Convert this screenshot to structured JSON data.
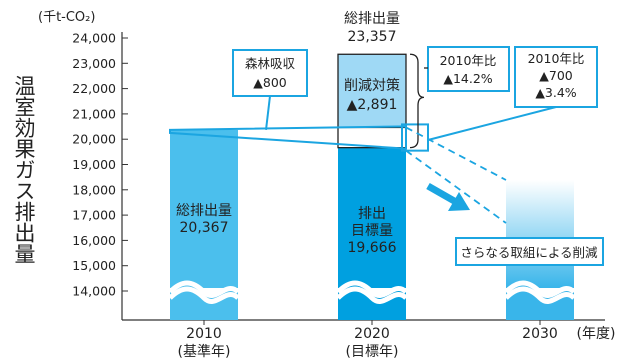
{
  "chart_data": {
    "type": "bar",
    "unit": "(千t-CO₂)",
    "ylabel": "温室効果ガス排出量",
    "xlabel": "(年度)",
    "ylim": [
      13500,
      24000
    ],
    "yticks": [
      "24,000",
      "23,000",
      "22,000",
      "21,000",
      "20,000",
      "19,000",
      "18,000",
      "17,000",
      "16,000",
      "15,000",
      "14,000"
    ],
    "ytick_values": [
      24000,
      23000,
      22000,
      21000,
      20000,
      19000,
      18000,
      17000,
      16000,
      15000,
      14000
    ],
    "categories": [
      {
        "year": "2010",
        "sub": "(基準年)"
      },
      {
        "year": "2020",
        "sub": "(目標年)"
      },
      {
        "year": "2030",
        "sub": ""
      }
    ],
    "bars": [
      {
        "category": "2010",
        "value": 20367,
        "label_lines": [
          "総排出量",
          "20,367"
        ],
        "color": "#4bbfed"
      },
      {
        "category": "2020",
        "value": 19666,
        "label_lines": [
          "排出",
          "目標量",
          "19,666"
        ],
        "color": "#00a0e0"
      }
    ],
    "stack_2020": {
      "forest_absorption": 800,
      "reduction_measures": 2891,
      "total": 23357,
      "total_label": [
        "総排出量",
        "23,357"
      ],
      "reduction_label": [
        "削減対策",
        "▲2,891"
      ],
      "forest_label": [
        "森林吸収",
        "▲800"
      ],
      "vs2010_total": [
        "2010年比",
        "▲14.2%"
      ],
      "vs2010_forest": [
        "2010年比",
        "▲700",
        "▲3.4%"
      ]
    },
    "future_2030": {
      "label": "さらなる取組による削減"
    },
    "colors": {
      "bar2010": "#4bbfed",
      "bar2020": "#00a0e0",
      "reduction": "#9fd9f5",
      "box": "#1ba5e1",
      "arrow": "#1ba5e1"
    }
  }
}
